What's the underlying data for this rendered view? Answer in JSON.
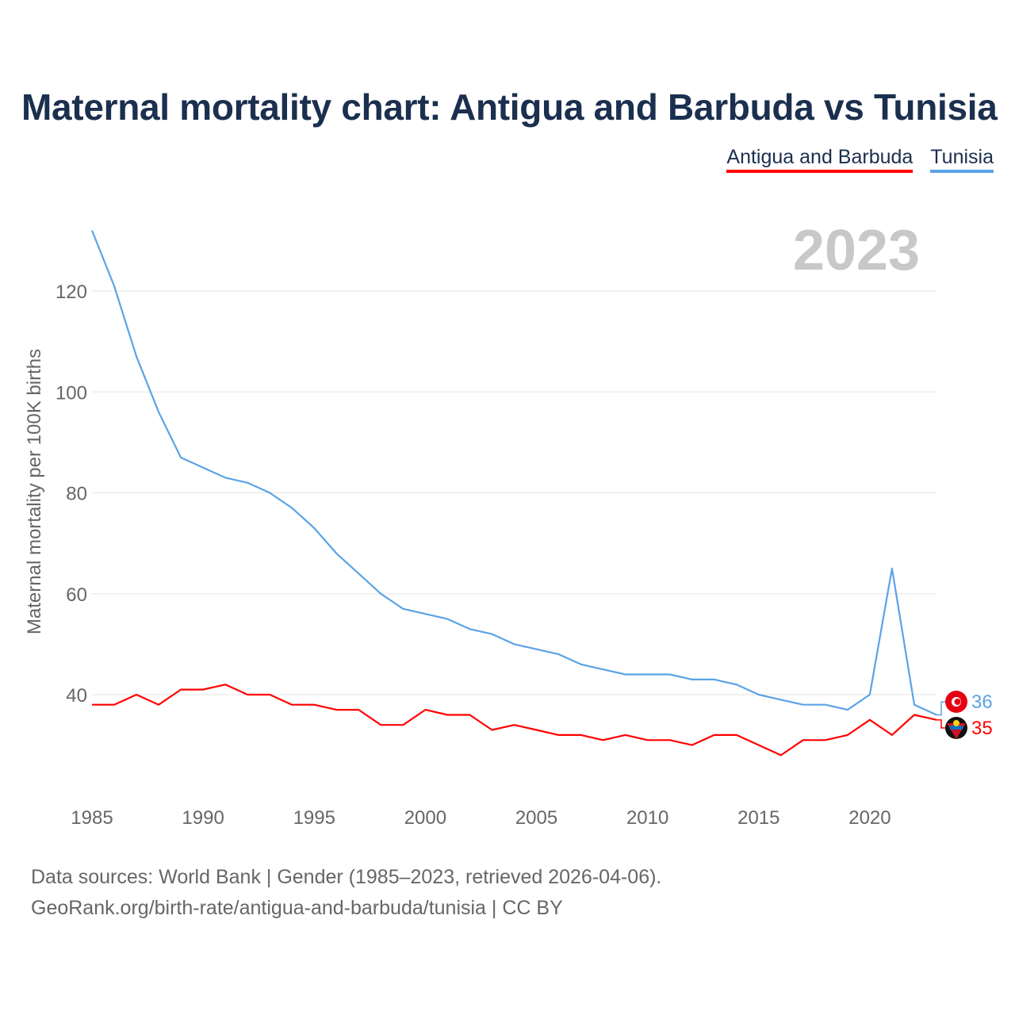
{
  "title": "Maternal mortality chart: Antigua and Barbuda vs Tunisia",
  "legend": [
    {
      "label": "Antigua and Barbuda",
      "color": "#ff0000"
    },
    {
      "label": "Tunisia",
      "color": "#5ba3e6"
    }
  ],
  "year_watermark": "2023",
  "footer": {
    "line1": "Data sources: World Bank | Gender (1985–2023, retrieved 2026-04-06).",
    "line2": "GeoRank.org/birth-rate/antigua-and-barbuda/tunisia | CC BY"
  },
  "chart_data": {
    "type": "line",
    "title": "Maternal mortality chart: Antigua and Barbuda vs Tunisia",
    "xlabel": "",
    "ylabel": "Maternal mortality per 100K births",
    "xlim": [
      1985,
      2023
    ],
    "ylim": [
      20,
      132
    ],
    "x_ticks": [
      1985,
      1990,
      1995,
      2000,
      2005,
      2010,
      2015,
      2020
    ],
    "y_ticks": [
      40,
      60,
      80,
      100,
      120
    ],
    "grid": true,
    "x": [
      1985,
      1986,
      1987,
      1988,
      1989,
      1990,
      1991,
      1992,
      1993,
      1994,
      1995,
      1996,
      1997,
      1998,
      1999,
      2000,
      2001,
      2002,
      2003,
      2004,
      2005,
      2006,
      2007,
      2008,
      2009,
      2010,
      2011,
      2012,
      2013,
      2014,
      2015,
      2016,
      2017,
      2018,
      2019,
      2020,
      2021,
      2022,
      2023
    ],
    "series": [
      {
        "name": "Tunisia",
        "color": "#5ba3e6",
        "end_label": "36",
        "values": [
          132,
          121,
          107,
          96,
          87,
          85,
          83,
          82,
          80,
          77,
          73,
          68,
          64,
          60,
          57,
          56,
          55,
          53,
          52,
          50,
          49,
          48,
          46,
          45,
          44,
          44,
          44,
          43,
          43,
          42,
          40,
          39,
          38,
          38,
          37,
          40,
          65,
          38,
          36
        ]
      },
      {
        "name": "Antigua and Barbuda",
        "color": "#ff0000",
        "end_label": "35",
        "values": [
          38,
          38,
          40,
          38,
          41,
          41,
          42,
          40,
          40,
          38,
          38,
          37,
          37,
          34,
          34,
          37,
          36,
          36,
          33,
          34,
          33,
          32,
          32,
          31,
          32,
          31,
          31,
          30,
          32,
          32,
          30,
          28,
          31,
          31,
          32,
          35,
          32,
          36,
          35
        ]
      }
    ]
  }
}
